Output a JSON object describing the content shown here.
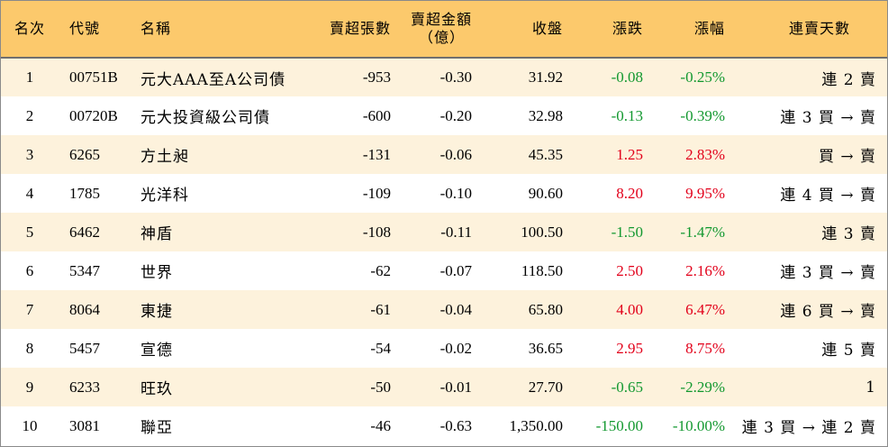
{
  "colors": {
    "header_bg": "#fcc96c",
    "row_odd": "#fdf2dc",
    "row_even": "#ffffff",
    "up": "#e2001a",
    "down": "#12982f"
  },
  "header": {
    "rank": "名次",
    "code": "代號",
    "name": "名稱",
    "sell_lots": "賣超張數",
    "sell_amount_line1": "賣超金額",
    "sell_amount_line2": "（億）",
    "close": "收盤",
    "change": "漲跌",
    "change_pct": "漲幅",
    "streak": "連賣天數"
  },
  "rows": [
    {
      "rank": "1",
      "code": "00751B",
      "name": "元大AAA至A公司債",
      "sell_lots": "-953",
      "sell_amount": "-0.30",
      "close": "31.92",
      "change": "-0.08",
      "change_pct": "-0.25%",
      "direction": "down",
      "streak": "連 2 賣"
    },
    {
      "rank": "2",
      "code": "00720B",
      "name": "元大投資級公司債",
      "sell_lots": "-600",
      "sell_amount": "-0.20",
      "close": "32.98",
      "change": "-0.13",
      "change_pct": "-0.39%",
      "direction": "down",
      "streak": "連 3 買 → 賣"
    },
    {
      "rank": "3",
      "code": "6265",
      "name": "方土昶",
      "sell_lots": "-131",
      "sell_amount": "-0.06",
      "close": "45.35",
      "change": "1.25",
      "change_pct": "2.83%",
      "direction": "up",
      "streak": "買 → 賣"
    },
    {
      "rank": "4",
      "code": "1785",
      "name": "光洋科",
      "sell_lots": "-109",
      "sell_amount": "-0.10",
      "close": "90.60",
      "change": "8.20",
      "change_pct": "9.95%",
      "direction": "up",
      "streak": "連 4 買 → 賣"
    },
    {
      "rank": "5",
      "code": "6462",
      "name": "神盾",
      "sell_lots": "-108",
      "sell_amount": "-0.11",
      "close": "100.50",
      "change": "-1.50",
      "change_pct": "-1.47%",
      "direction": "down",
      "streak": "連 3 賣"
    },
    {
      "rank": "6",
      "code": "5347",
      "name": "世界",
      "sell_lots": "-62",
      "sell_amount": "-0.07",
      "close": "118.50",
      "change": "2.50",
      "change_pct": "2.16%",
      "direction": "up",
      "streak": "連 3 買 → 賣"
    },
    {
      "rank": "7",
      "code": "8064",
      "name": "東捷",
      "sell_lots": "-61",
      "sell_amount": "-0.04",
      "close": "65.80",
      "change": "4.00",
      "change_pct": "6.47%",
      "direction": "up",
      "streak": "連 6 買 → 賣"
    },
    {
      "rank": "8",
      "code": "5457",
      "name": "宣德",
      "sell_lots": "-54",
      "sell_amount": "-0.02",
      "close": "36.65",
      "change": "2.95",
      "change_pct": "8.75%",
      "direction": "up",
      "streak": "連 5 賣"
    },
    {
      "rank": "9",
      "code": "6233",
      "name": "旺玖",
      "sell_lots": "-50",
      "sell_amount": "-0.01",
      "close": "27.70",
      "change": "-0.65",
      "change_pct": "-2.29%",
      "direction": "down",
      "streak": "1"
    },
    {
      "rank": "10",
      "code": "3081",
      "name": "聯亞",
      "sell_lots": "-46",
      "sell_amount": "-0.63",
      "close": "1,350.00",
      "change": "-150.00",
      "change_pct": "-10.00%",
      "direction": "down",
      "streak": "連 3 買 → 連 2 賣"
    }
  ]
}
